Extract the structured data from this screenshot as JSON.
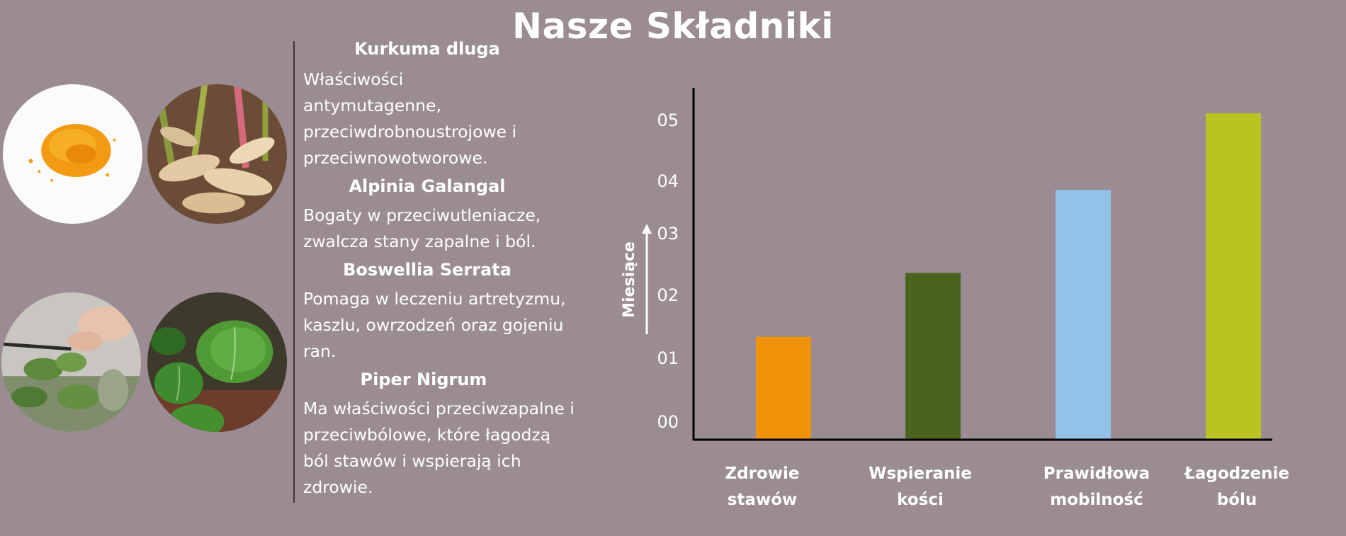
{
  "page": {
    "title": "Nasze Składniki"
  },
  "ingredients": [
    {
      "name": "Kurkuma dluga",
      "description": "Właściwości antymutagenne, przeciwdrobnoustrojowe i przeciwnowotworowe."
    },
    {
      "name": "Alpinia Galangal",
      "description": "Bogaty w przeciwutleniacze, zwalcza stany zapalne i ból."
    },
    {
      "name": "Boswellia Serrata",
      "description": "Pomaga w leczeniu artretyzmu, kaszlu, owrzodzeń oraz gojeniu ran."
    },
    {
      "name": "Piper Nigrum",
      "description": "Ma właściwości przeciwzapalne i przeciwbólowe, które łagodzą ból stawów i wspierają ich zdrowie."
    }
  ],
  "images": [
    {
      "icon": "turmeric-powder-image"
    },
    {
      "icon": "galangal-root-image"
    },
    {
      "icon": "herb-plant-image"
    },
    {
      "icon": "betel-leaf-image"
    }
  ],
  "chart_data": {
    "type": "bar",
    "title": "",
    "ylabel": "Miesiące",
    "xlabel": "",
    "categories": [
      "Zdrowie stawów",
      "Wspieranie kości",
      "Prawidłowa mobilność",
      "Łagodzenie bólu"
    ],
    "values": [
      1.6,
      2.6,
      3.9,
      5.1
    ],
    "colors": [
      "#ef9307",
      "#4a6420",
      "#93c2e8",
      "#b9c322"
    ],
    "ylim": [
      0,
      5.5
    ],
    "yticks": [
      {
        "value": 0,
        "label": "00"
      },
      {
        "value": 1,
        "label": "01"
      },
      {
        "value": 2,
        "label": "02"
      },
      {
        "value": 3,
        "label": "03"
      },
      {
        "value": 4,
        "label": "04"
      },
      {
        "value": 5,
        "label": "05"
      }
    ],
    "grid": false,
    "legend": "none"
  }
}
